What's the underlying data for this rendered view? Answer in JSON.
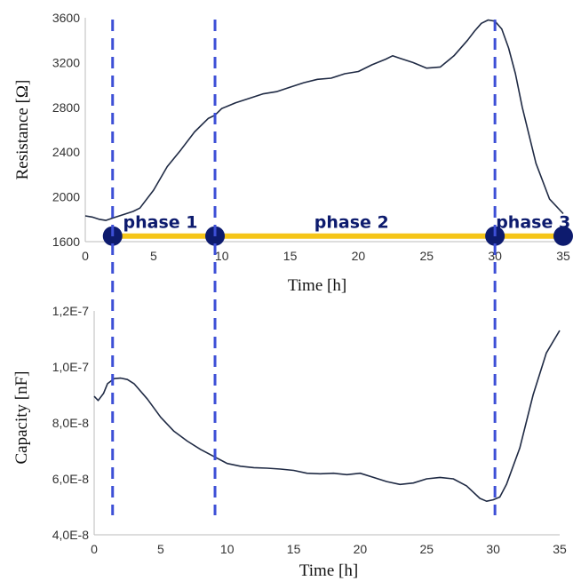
{
  "colors": {
    "curve": "#1f2a44",
    "dashed": "#3d4fd6",
    "phase_bar": "#f5c518",
    "phase_dot": "#0d1b6e",
    "phase_text": "#0d1b6e",
    "axis": "#bbbbbb"
  },
  "chart_data": [
    {
      "type": "line",
      "xlabel": "Time [h]",
      "ylabel": "Resistance [Ω]",
      "xlim": [
        0,
        35
      ],
      "ylim": [
        1600,
        3600
      ],
      "x_ticks": [
        {
          "v": 0,
          "label": "0"
        },
        {
          "v": 5,
          "label": "5"
        },
        {
          "v": 10,
          "label": "10"
        },
        {
          "v": 15,
          "label": "15"
        },
        {
          "v": 20,
          "label": "20"
        },
        {
          "v": 25,
          "label": "25"
        },
        {
          "v": 30,
          "label": "30"
        },
        {
          "v": 35,
          "label": "35"
        }
      ],
      "y_ticks": [
        {
          "v": 1600,
          "label": "1600"
        },
        {
          "v": 2000,
          "label": "2000"
        },
        {
          "v": 2400,
          "label": "2400"
        },
        {
          "v": 2800,
          "label": "2800"
        },
        {
          "v": 3200,
          "label": "3200"
        },
        {
          "v": 3600,
          "label": "3600"
        }
      ],
      "series": [
        {
          "x": [
            0,
            0.5,
            1,
            1.5,
            2,
            2.5,
            3,
            3.5,
            4,
            5,
            6,
            7,
            8,
            9,
            9.5,
            10,
            11,
            12,
            13,
            14,
            15,
            16,
            17,
            18,
            19,
            20,
            21,
            22,
            22.5,
            23,
            24,
            25,
            26,
            27,
            28,
            28.5,
            29,
            29.5,
            30,
            30.5,
            31,
            31.5,
            32,
            33,
            34,
            35
          ],
          "y": [
            1830,
            1820,
            1800,
            1790,
            1810,
            1830,
            1850,
            1870,
            1900,
            2060,
            2270,
            2420,
            2580,
            2700,
            2730,
            2790,
            2840,
            2880,
            2920,
            2940,
            2980,
            3020,
            3050,
            3060,
            3100,
            3120,
            3180,
            3230,
            3260,
            3240,
            3200,
            3150,
            3160,
            3260,
            3400,
            3480,
            3550,
            3580,
            3570,
            3500,
            3330,
            3100,
            2800,
            2300,
            1980,
            1850
          ]
        }
      ],
      "phases": {
        "labels": [
          "phase 1",
          "phase 2",
          "phase 3"
        ],
        "label_x": [
          5.5,
          19.5,
          32.8
        ],
        "boundaries": [
          2,
          9.5,
          30,
          35
        ],
        "level": 1650
      }
    },
    {
      "type": "line",
      "xlabel": "Time [h]",
      "ylabel": "Capacity [nF]",
      "xlim": [
        0,
        35
      ],
      "ylim": [
        4e-08,
        1.2e-07
      ],
      "x_ticks": [
        {
          "v": 0,
          "label": "0"
        },
        {
          "v": 5,
          "label": "5"
        },
        {
          "v": 10,
          "label": "10"
        },
        {
          "v": 15,
          "label": "15"
        },
        {
          "v": 20,
          "label": "20"
        },
        {
          "v": 25,
          "label": "25"
        },
        {
          "v": 30,
          "label": "30"
        },
        {
          "v": 35,
          "label": "35"
        }
      ],
      "y_ticks": [
        {
          "v": 4e-08,
          "label": "4,0E-8"
        },
        {
          "v": 6e-08,
          "label": "6,0E-8"
        },
        {
          "v": 8e-08,
          "label": "8,0E-8"
        },
        {
          "v": 1e-07,
          "label": "1,0E-7"
        },
        {
          "v": 1.2e-07,
          "label": "1,2E-7"
        }
      ],
      "series": [
        {
          "x": [
            0,
            0.3,
            0.7,
            1,
            1.5,
            2,
            2.5,
            3,
            4,
            5,
            6,
            7,
            8,
            9,
            10,
            11,
            12,
            13,
            14,
            15,
            16,
            17,
            18,
            19,
            20,
            21,
            22,
            23,
            24,
            25,
            26,
            27,
            28,
            29,
            29.5,
            30,
            30.5,
            31,
            32,
            33,
            34,
            35
          ],
          "y": [
            8.95e-08,
            8.8e-08,
            9.05e-08,
            9.4e-08,
            9.58e-08,
            9.6e-08,
            9.55e-08,
            9.4e-08,
            8.85e-08,
            8.2e-08,
            7.7e-08,
            7.35e-08,
            7.05e-08,
            6.8e-08,
            6.55e-08,
            6.45e-08,
            6.4e-08,
            6.38e-08,
            6.35e-08,
            6.3e-08,
            6.2e-08,
            6.18e-08,
            6.2e-08,
            6.15e-08,
            6.2e-08,
            6.05e-08,
            5.9e-08,
            5.8e-08,
            5.85e-08,
            6e-08,
            6.05e-08,
            6e-08,
            5.75e-08,
            5.3e-08,
            5.2e-08,
            5.25e-08,
            5.35e-08,
            5.8e-08,
            7.1e-08,
            9e-08,
            1.05e-07,
            1.13e-07
          ]
        }
      ]
    }
  ]
}
